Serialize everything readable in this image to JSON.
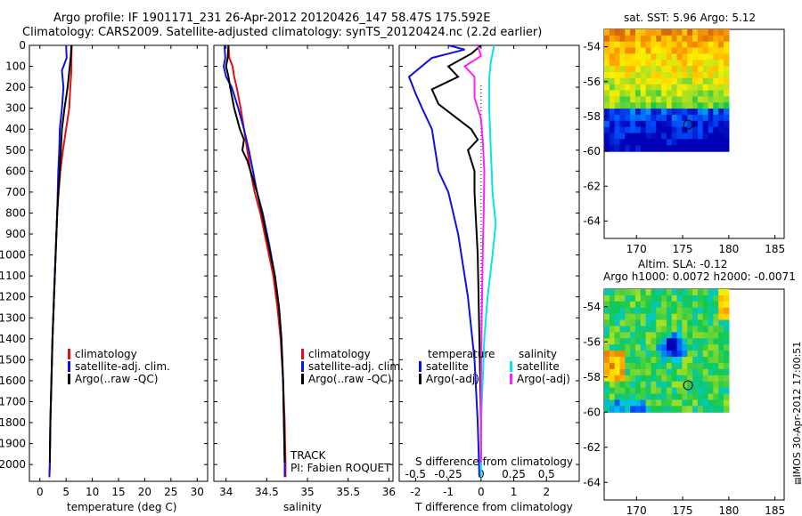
{
  "titles": {
    "line1": "Argo profile: IF 1901171_231 26-Apr-2012 20120426_147 58.47S 175.592E",
    "line2": "Climatology: CARS2009. Satellite-adjusted climatology: synTS_20120424.nc (2.2d earlier)"
  },
  "colors": {
    "climatology": "#e01010",
    "satellite": "#1010e0",
    "argo": "#000000",
    "sal_satellite": "#00e5f0",
    "sal_argo": "#ff20ff"
  },
  "stamp": "IMOS 30-Apr-2012 17:00:51",
  "chart_data": [
    {
      "type": "line",
      "panel": "temperature",
      "xlabel": "temperature (deg C)",
      "xlim": [
        -2,
        32
      ],
      "xticks": [
        0,
        5,
        10,
        15,
        20,
        25,
        30
      ],
      "ylim": [
        0,
        2080
      ],
      "yreversed": true,
      "yticks": [
        0,
        100,
        200,
        300,
        400,
        500,
        600,
        700,
        800,
        900,
        1000,
        1100,
        1200,
        1300,
        1400,
        1500,
        1600,
        1700,
        1800,
        1900,
        2000
      ],
      "legend": [
        "climatology",
        "satellite-adj. clim.",
        "Argo(..raw -QC)"
      ],
      "series": [
        {
          "name": "climatology",
          "color": "#e01010",
          "points": [
            [
              6.1,
              0
            ],
            [
              6.0,
              60
            ],
            [
              6.0,
              120
            ],
            [
              5.8,
              200
            ],
            [
              5.6,
              300
            ],
            [
              5.0,
              400
            ],
            [
              4.4,
              500
            ],
            [
              3.9,
              600
            ],
            [
              3.6,
              700
            ],
            [
              3.3,
              800
            ],
            [
              3.0,
              1000
            ],
            [
              2.7,
              1200
            ],
            [
              2.4,
              1400
            ],
            [
              2.2,
              1600
            ],
            [
              2.0,
              1800
            ],
            [
              1.9,
              2000
            ],
            [
              1.8,
              2060
            ]
          ]
        },
        {
          "name": "satellite-adj. clim.",
          "color": "#1010e0",
          "points": [
            [
              5.0,
              0
            ],
            [
              5.1,
              60
            ],
            [
              4.2,
              120
            ],
            [
              4.5,
              200
            ],
            [
              4.2,
              300
            ],
            [
              3.8,
              400
            ],
            [
              3.7,
              500
            ],
            [
              3.5,
              600
            ],
            [
              3.4,
              700
            ],
            [
              3.3,
              800
            ],
            [
              3.0,
              1000
            ],
            [
              2.7,
              1200
            ],
            [
              2.4,
              1400
            ],
            [
              2.2,
              1600
            ],
            [
              2.0,
              1800
            ],
            [
              1.9,
              2000
            ],
            [
              1.8,
              2060
            ]
          ]
        },
        {
          "name": "Argo(..raw -QC)",
          "color": "#000000",
          "points": [
            [
              6.0,
              0
            ],
            [
              5.9,
              50
            ],
            [
              5.7,
              100
            ],
            [
              5.3,
              200
            ],
            [
              4.7,
              300
            ],
            [
              4.2,
              400
            ],
            [
              4.0,
              500
            ],
            [
              3.8,
              600
            ],
            [
              3.5,
              700
            ],
            [
              3.3,
              800
            ],
            [
              3.0,
              1000
            ],
            [
              2.7,
              1200
            ],
            [
              2.4,
              1400
            ],
            [
              2.2,
              1600
            ],
            [
              2.0,
              1800
            ],
            [
              1.9,
              1990
            ]
          ]
        }
      ]
    },
    {
      "type": "line",
      "panel": "salinity",
      "xlabel": "salinity",
      "xlim": [
        33.85,
        36.05
      ],
      "xticks": [
        34,
        34.5,
        35,
        35.5,
        36
      ],
      "ylim": [
        0,
        2080
      ],
      "yreversed": true,
      "legend": [
        "climatology",
        "satellite-adj. clim.",
        "Argo(..raw -QC)"
      ],
      "annotation": [
        "TRACK",
        "PI: Fabien ROQUET"
      ],
      "series": [
        {
          "name": "climatology",
          "color": "#e01010",
          "points": [
            [
              34.03,
              0
            ],
            [
              34.04,
              60
            ],
            [
              34.08,
              100
            ],
            [
              34.1,
              150
            ],
            [
              34.13,
              200
            ],
            [
              34.18,
              300
            ],
            [
              34.22,
              400
            ],
            [
              34.26,
              500
            ],
            [
              34.3,
              600
            ],
            [
              34.35,
              700
            ],
            [
              34.42,
              800
            ],
            [
              34.5,
              950
            ],
            [
              34.58,
              1100
            ],
            [
              34.63,
              1250
            ],
            [
              34.67,
              1400
            ],
            [
              34.7,
              1600
            ],
            [
              34.72,
              1800
            ],
            [
              34.73,
              2000
            ],
            [
              34.73,
              2060
            ]
          ]
        },
        {
          "name": "satellite-adj. clim.",
          "color": "#1010e0",
          "points": [
            [
              33.98,
              0
            ],
            [
              33.99,
              60
            ],
            [
              33.97,
              100
            ],
            [
              34.0,
              150
            ],
            [
              34.07,
              200
            ],
            [
              34.15,
              300
            ],
            [
              34.22,
              400
            ],
            [
              34.28,
              500
            ],
            [
              34.33,
              600
            ],
            [
              34.38,
              700
            ],
            [
              34.45,
              800
            ],
            [
              34.53,
              950
            ],
            [
              34.6,
              1100
            ],
            [
              34.65,
              1250
            ],
            [
              34.68,
              1400
            ],
            [
              34.7,
              1600
            ],
            [
              34.71,
              1800
            ],
            [
              34.72,
              2000
            ],
            [
              34.72,
              2060
            ]
          ]
        },
        {
          "name": "Argo(..raw -QC)",
          "color": "#000000",
          "points": [
            [
              34.03,
              0
            ],
            [
              34.02,
              60
            ],
            [
              34.0,
              100
            ],
            [
              34.03,
              150
            ],
            [
              34.05,
              200
            ],
            [
              34.1,
              300
            ],
            [
              34.17,
              400
            ],
            [
              34.22,
              450
            ],
            [
              34.2,
              500
            ],
            [
              34.26,
              550
            ],
            [
              34.3,
              600
            ],
            [
              34.38,
              700
            ],
            [
              34.44,
              800
            ],
            [
              34.52,
              950
            ],
            [
              34.6,
              1100
            ],
            [
              34.65,
              1250
            ],
            [
              34.68,
              1400
            ],
            [
              34.7,
              1600
            ],
            [
              34.71,
              1800
            ],
            [
              34.72,
              1990
            ]
          ]
        }
      ]
    },
    {
      "type": "line",
      "panel": "difference",
      "xlabel": "T difference from climatology",
      "xlabel2": "S difference from climatology",
      "xlim": [
        -2.5,
        3.0
      ],
      "xticks": [
        -2,
        -1,
        0,
        1,
        2
      ],
      "xticks2": [
        -0.5,
        -0.25,
        0,
        0.25,
        0.5
      ],
      "ylim": [
        0,
        2080
      ],
      "yreversed": true,
      "legend": [
        "temperature",
        "satellite",
        "Argo(-adj)",
        "salinity",
        "satellite",
        "Argo(-adj)"
      ],
      "series": [
        {
          "name": "satellite",
          "group": "temperature",
          "color": "#1010e0",
          "points": [
            [
              -1.0,
              0
            ],
            [
              -0.5,
              20
            ],
            [
              -1.5,
              60
            ],
            [
              -2.2,
              150
            ],
            [
              -2.0,
              230
            ],
            [
              -1.8,
              300
            ],
            [
              -1.5,
              400
            ],
            [
              -1.4,
              500
            ],
            [
              -1.3,
              600
            ],
            [
              -1.0,
              700
            ],
            [
              -0.7,
              900
            ],
            [
              -0.4,
              1200
            ],
            [
              -0.2,
              1500
            ],
            [
              -0.1,
              1800
            ],
            [
              -0.05,
              2060
            ]
          ]
        },
        {
          "name": "Argo(-adj)",
          "group": "temperature",
          "color": "#000000",
          "points": [
            [
              0,
              0
            ],
            [
              -0.3,
              40
            ],
            [
              -1.0,
              100
            ],
            [
              -0.7,
              150
            ],
            [
              -1.5,
              210
            ],
            [
              -1.3,
              280
            ],
            [
              -0.8,
              340
            ],
            [
              -0.3,
              400
            ],
            [
              -0.1,
              450
            ],
            [
              -0.4,
              500
            ],
            [
              -0.2,
              600
            ],
            [
              -0.2,
              700
            ],
            [
              -0.1,
              1000
            ],
            [
              -0.05,
              1400
            ],
            [
              0,
              1800
            ],
            [
              0,
              1990
            ]
          ]
        },
        {
          "name": "satellite",
          "group": "salinity",
          "color": "#00e5f0",
          "points": [
            [
              0.4,
              0
            ],
            [
              0.3,
              80
            ],
            [
              0.25,
              160
            ],
            [
              0.25,
              300
            ],
            [
              0.3,
              500
            ],
            [
              0.35,
              700
            ],
            [
              0.45,
              850
            ],
            [
              0.35,
              1000
            ],
            [
              0.2,
              1200
            ],
            [
              0.1,
              1400
            ],
            [
              0.05,
              1600
            ],
            [
              0,
              1800
            ],
            [
              0,
              2060
            ]
          ]
        },
        {
          "name": "Argo(-adj)",
          "group": "salinity",
          "color": "#ff20ff",
          "points": [
            [
              -0.1,
              0
            ],
            [
              0,
              50
            ],
            [
              -0.5,
              100
            ],
            [
              -0.2,
              150
            ],
            [
              -0.2,
              250
            ],
            [
              0,
              350
            ],
            [
              0.05,
              450
            ],
            [
              0.1,
              600
            ],
            [
              0.08,
              800
            ],
            [
              0.05,
              1000
            ],
            [
              0.02,
              1300
            ],
            [
              0,
              1600
            ],
            [
              0,
              1990
            ]
          ]
        }
      ]
    },
    {
      "type": "heatmap",
      "panel": "sst-map",
      "title": "sat. SST: 5.96 Argo: 5.12",
      "xlim": [
        166.5,
        186
      ],
      "xticks": [
        170,
        175,
        180,
        185
      ],
      "ylim": [
        -65,
        -53
      ],
      "yticks": [
        -54,
        -56,
        -58,
        -60,
        -62,
        -64
      ],
      "extent": {
        "lon": [
          166.5,
          180
        ],
        "lat": [
          -60,
          -53
        ]
      },
      "marker": {
        "lon": 175.592,
        "lat": -58.47
      }
    },
    {
      "type": "heatmap",
      "panel": "sla-map",
      "title": [
        "Altim. SLA: -0.12",
        "Argo h1000: 0.0072 h2000: -0.0071"
      ],
      "xlim": [
        166.5,
        186
      ],
      "xticks": [
        170,
        175,
        180,
        185
      ],
      "ylim": [
        -65,
        -53
      ],
      "yticks": [
        -54,
        -56,
        -58,
        -60,
        -62,
        -64
      ],
      "extent": {
        "lon": [
          166.5,
          180
        ],
        "lat": [
          -60,
          -53
        ]
      },
      "marker": {
        "lon": 175.592,
        "lat": -58.47
      }
    }
  ]
}
